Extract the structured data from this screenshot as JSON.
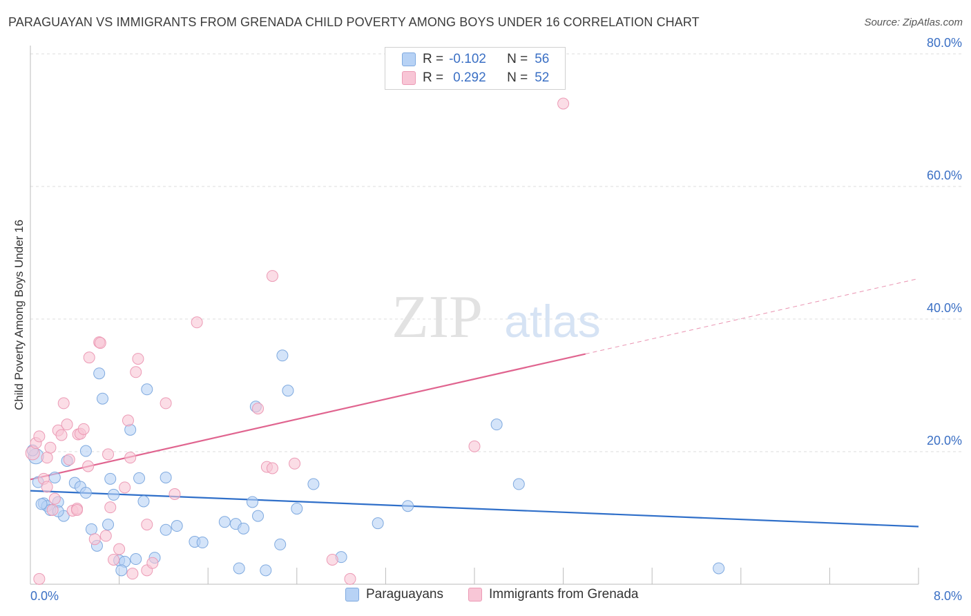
{
  "header": {
    "title": "PARAGUAYAN VS IMMIGRANTS FROM GRENADA CHILD POVERTY AMONG BOYS UNDER 16 CORRELATION CHART",
    "source": "Source: ZipAtlas.com"
  },
  "watermark": {
    "zip": "ZIP",
    "atlas": "atlas"
  },
  "legend": {
    "rows": [
      {
        "r_label": "R =",
        "r_value": "-0.102",
        "n_label": "N =",
        "n_value": "56"
      },
      {
        "r_label": "R =",
        "r_value": "0.292",
        "n_label": "N =",
        "n_value": "52"
      }
    ]
  },
  "colors": {
    "blue_fill": "#b7d2f5",
    "blue_stroke": "#7ea9df",
    "blue_line": "#2f6fc9",
    "pink_fill": "#f8c6d6",
    "pink_stroke": "#ec9ab5",
    "pink_line": "#e0648f",
    "axis_label": "#3a6fc4",
    "grid": "#dddddd"
  },
  "chart_data": {
    "type": "scatter",
    "title": "PARAGUAYAN VS IMMIGRANTS FROM GRENADA CHILD POVERTY AMONG BOYS UNDER 16 CORRELATION CHART",
    "xlabel": "",
    "ylabel": "Child Poverty Among Boys Under 16",
    "xlim": [
      0,
      8
    ],
    "ylim": [
      0,
      80
    ],
    "x_tick_labels": [
      "0.0%",
      "8.0%"
    ],
    "y_tick_labels": [
      "20.0%",
      "40.0%",
      "60.0%",
      "80.0%"
    ],
    "y_ticks": [
      20,
      40,
      60,
      80
    ],
    "grid": true,
    "legend_position": "bottom",
    "series": [
      {
        "name": "Paraguayans",
        "color": "#b7d2f5",
        "trend": {
          "x": [
            0,
            8
          ],
          "y": [
            14.1,
            8.7
          ],
          "dashed_from": null
        },
        "points": [
          [
            0.05,
            19.3
          ],
          [
            0.07,
            15.4
          ],
          [
            0.12,
            12.2
          ],
          [
            0.15,
            11.8
          ],
          [
            0.18,
            11.2
          ],
          [
            0.22,
            16.1
          ],
          [
            0.25,
            12.4
          ],
          [
            0.3,
            10.3
          ],
          [
            0.33,
            18.6
          ],
          [
            0.4,
            15.3
          ],
          [
            0.45,
            14.7
          ],
          [
            0.5,
            20.1
          ],
          [
            0.55,
            8.3
          ],
          [
            0.6,
            5.8
          ],
          [
            0.62,
            31.8
          ],
          [
            0.65,
            28.0
          ],
          [
            0.7,
            9.0
          ],
          [
            0.72,
            15.9
          ],
          [
            0.75,
            13.5
          ],
          [
            0.8,
            3.6
          ],
          [
            0.85,
            3.4
          ],
          [
            0.82,
            2.1
          ],
          [
            0.9,
            23.3
          ],
          [
            0.95,
            3.8
          ],
          [
            0.98,
            16.0
          ],
          [
            1.02,
            12.5
          ],
          [
            1.05,
            29.4
          ],
          [
            1.12,
            4.0
          ],
          [
            1.22,
            8.2
          ],
          [
            1.22,
            16.1
          ],
          [
            1.32,
            8.8
          ],
          [
            1.48,
            6.4
          ],
          [
            1.55,
            6.3
          ],
          [
            1.75,
            9.4
          ],
          [
            1.85,
            9.1
          ],
          [
            1.88,
            2.4
          ],
          [
            1.92,
            8.4
          ],
          [
            2.0,
            12.4
          ],
          [
            2.03,
            26.8
          ],
          [
            2.05,
            10.3
          ],
          [
            2.12,
            2.1
          ],
          [
            2.25,
            6.0
          ],
          [
            2.27,
            34.5
          ],
          [
            2.32,
            29.2
          ],
          [
            2.4,
            11.4
          ],
          [
            2.55,
            15.1
          ],
          [
            2.8,
            4.1
          ],
          [
            3.13,
            9.2
          ],
          [
            3.4,
            11.8
          ],
          [
            4.2,
            24.1
          ],
          [
            4.4,
            15.1
          ],
          [
            6.2,
            2.4
          ],
          [
            0.02,
            20.2
          ],
          [
            0.1,
            12.1
          ],
          [
            0.5,
            13.8
          ],
          [
            0.25,
            11.0
          ]
        ]
      },
      {
        "name": "Immigrants from Grenada",
        "color": "#f8c6d6",
        "trend": {
          "x": [
            0,
            8
          ],
          "y": [
            15.8,
            46.1
          ],
          "dashed_from": 5.0
        },
        "points": [
          [
            0.02,
            19.8
          ],
          [
            0.05,
            21.3
          ],
          [
            0.08,
            22.3
          ],
          [
            0.12,
            15.9
          ],
          [
            0.15,
            19.1
          ],
          [
            0.18,
            20.6
          ],
          [
            0.2,
            11.2
          ],
          [
            0.22,
            12.9
          ],
          [
            0.25,
            23.2
          ],
          [
            0.28,
            22.5
          ],
          [
            0.3,
            27.3
          ],
          [
            0.33,
            24.1
          ],
          [
            0.35,
            18.8
          ],
          [
            0.38,
            11.1
          ],
          [
            0.42,
            11.4
          ],
          [
            0.43,
            22.6
          ],
          [
            0.45,
            22.7
          ],
          [
            0.48,
            23.4
          ],
          [
            0.52,
            17.8
          ],
          [
            0.53,
            34.2
          ],
          [
            0.58,
            6.8
          ],
          [
            0.62,
            36.5
          ],
          [
            0.63,
            36.4
          ],
          [
            0.68,
            7.3
          ],
          [
            0.7,
            19.6
          ],
          [
            0.72,
            11.6
          ],
          [
            0.75,
            3.7
          ],
          [
            0.8,
            5.3
          ],
          [
            0.85,
            14.6
          ],
          [
            0.88,
            24.7
          ],
          [
            0.9,
            19.1
          ],
          [
            0.92,
            1.6
          ],
          [
            0.95,
            32.0
          ],
          [
            0.97,
            34.0
          ],
          [
            1.05,
            2.1
          ],
          [
            1.05,
            9.0
          ],
          [
            1.1,
            3.2
          ],
          [
            1.22,
            27.3
          ],
          [
            1.3,
            13.6
          ],
          [
            1.5,
            39.5
          ],
          [
            2.05,
            26.5
          ],
          [
            2.13,
            17.7
          ],
          [
            2.18,
            17.5
          ],
          [
            2.18,
            46.5
          ],
          [
            2.38,
            18.2
          ],
          [
            2.72,
            3.7
          ],
          [
            2.88,
            0.8
          ],
          [
            4.0,
            20.8
          ],
          [
            4.8,
            72.5
          ],
          [
            0.15,
            14.7
          ],
          [
            0.42,
            11.2
          ],
          [
            0.08,
            0.8
          ]
        ]
      }
    ]
  },
  "bottom_legend": {
    "items": [
      "Paraguayans",
      "Immigrants from Grenada"
    ]
  }
}
